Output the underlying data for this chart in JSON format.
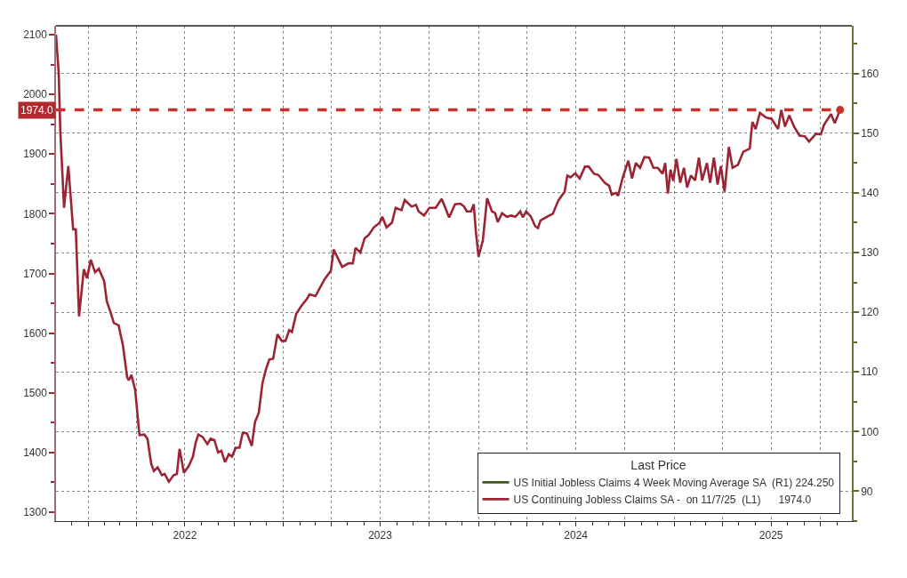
{
  "chart_data": {
    "type": "line",
    "legend_title": "Last Price",
    "xlim": [
      "2021-11-02",
      "2025-11-29"
    ],
    "xticks": [
      {
        "value": "2022-01-01",
        "label": null
      },
      {
        "value": "2022-04-01",
        "label": null
      },
      {
        "value": "2022-07-01",
        "label": "2022"
      },
      {
        "value": "2022-10-01",
        "label": null
      },
      {
        "value": "2023-01-01",
        "label": null
      },
      {
        "value": "2023-04-01",
        "label": null
      },
      {
        "value": "2023-07-01",
        "label": "2023"
      },
      {
        "value": "2023-10-01",
        "label": null
      },
      {
        "value": "2024-01-01",
        "label": null
      },
      {
        "value": "2024-04-01",
        "label": null
      },
      {
        "value": "2024-07-01",
        "label": "2024"
      },
      {
        "value": "2024-10-01",
        "label": null
      },
      {
        "value": "2025-01-01",
        "label": null
      },
      {
        "value": "2025-04-01",
        "label": null
      },
      {
        "value": "2025-07-01",
        "label": "2025"
      },
      {
        "value": "2025-10-01",
        "label": null
      }
    ],
    "ylim": [
      1285,
      2115
    ],
    "yticks": [
      1300,
      1400,
      1500,
      1600,
      1700,
      1800,
      1900,
      2000,
      2100
    ],
    "y2lim": [
      85,
      168
    ],
    "y2ticks": [
      90,
      100,
      110,
      120,
      130,
      140,
      150,
      160
    ],
    "grid": true,
    "legend": "bottom right",
    "marker": "none",
    "line_style": "solid",
    "ref_lines": [
      {
        "axis": "y",
        "value": 1974.0,
        "label": "1974.0",
        "color": "#c8322a",
        "line_style": "dashed"
      }
    ],
    "series": [
      {
        "name": "US Initial Jobless Claims 4 Week Moving Average SA  (R1) 224.250",
        "color": "#3b5a1c",
        "axis": "y2"
      },
      {
        "name": "US Continuing Jobless Claims SA -  on 11/7/25  (L1)      1974.0",
        "color": "#9b2535",
        "axis": "y",
        "x": [
          "2021-11-02",
          "2021-11-07",
          "2021-11-10",
          "2021-11-17",
          "2021-11-25",
          "2021-12-04",
          "2021-12-09",
          "2021-12-15",
          "2021-12-24",
          "2021-12-30",
          "2022-01-06",
          "2022-01-14",
          "2022-01-21",
          "2022-01-31",
          "2022-02-05",
          "2022-02-13",
          "2022-02-18",
          "2022-02-27",
          "2022-03-07",
          "2022-03-15",
          "2022-03-18",
          "2022-03-23",
          "2022-03-30",
          "2022-04-07",
          "2022-04-16",
          "2022-04-22",
          "2022-04-29",
          "2022-05-04",
          "2022-05-11",
          "2022-05-19",
          "2022-05-24",
          "2022-06-01",
          "2022-06-10",
          "2022-06-16",
          "2022-06-21",
          "2022-06-29",
          "2022-07-08",
          "2022-07-16",
          "2022-07-21",
          "2022-07-26",
          "2022-08-03",
          "2022-08-12",
          "2022-08-18",
          "2022-08-25",
          "2022-09-01",
          "2022-09-07",
          "2022-09-14",
          "2022-09-21",
          "2022-09-27",
          "2022-10-04",
          "2022-10-11",
          "2022-10-17",
          "2022-10-25",
          "2022-11-03",
          "2022-11-09",
          "2022-11-16",
          "2022-11-23",
          "2022-11-29",
          "2022-12-06",
          "2022-12-13",
          "2022-12-21",
          "2022-12-29",
          "2023-01-05",
          "2023-01-12",
          "2023-01-17",
          "2023-01-25",
          "2023-02-04",
          "2023-02-14",
          "2023-02-19",
          "2023-03-02",
          "2023-03-19",
          "2023-03-31",
          "2023-04-05",
          "2023-04-21",
          "2023-05-03",
          "2023-05-11",
          "2023-05-16",
          "2023-05-25",
          "2023-06-02",
          "2023-06-10",
          "2023-06-19",
          "2023-06-30",
          "2023-07-05",
          "2023-07-13",
          "2023-07-23",
          "2023-07-30",
          "2023-08-10",
          "2023-08-16",
          "2023-08-29",
          "2023-09-06",
          "2023-09-11",
          "2023-09-21",
          "2023-10-01",
          "2023-10-13",
          "2023-10-24",
          "2023-11-07",
          "2023-11-18",
          "2023-11-28",
          "2023-12-05",
          "2023-12-10",
          "2023-12-18",
          "2023-12-23",
          "2023-12-27",
          "2024-01-01",
          "2024-01-09",
          "2024-01-17",
          "2024-01-26",
          "2024-02-01",
          "2024-02-06",
          "2024-02-14",
          "2024-02-23",
          "2024-03-02",
          "2024-03-10",
          "2024-03-19",
          "2024-03-24",
          "2024-03-30",
          "2024-04-08",
          "2024-04-16",
          "2024-04-21",
          "2024-04-26",
          "2024-05-08",
          "2024-05-19",
          "2024-05-29",
          "2024-06-10",
          "2024-06-15",
          "2024-06-21",
          "2024-06-30",
          "2024-07-08",
          "2024-07-18",
          "2024-07-25",
          "2024-08-04",
          "2024-08-12",
          "2024-08-24",
          "2024-09-01",
          "2024-09-06",
          "2024-09-14",
          "2024-09-18",
          "2024-09-26",
          "2024-10-07",
          "2024-10-14",
          "2024-10-21",
          "2024-10-29",
          "2024-11-06",
          "2024-11-15",
          "2024-11-23",
          "2024-12-01",
          "2024-12-10",
          "2024-12-15",
          "2024-12-20",
          "2024-12-25",
          "2024-12-30",
          "2025-01-05",
          "2025-01-12",
          "2025-01-19",
          "2025-01-25",
          "2025-02-01",
          "2025-02-09",
          "2025-02-16",
          "2025-02-22",
          "2025-03-03",
          "2025-03-09",
          "2025-03-16",
          "2025-03-23",
          "2025-03-29",
          "2025-04-05",
          "2025-04-13",
          "2025-04-20",
          "2025-04-30",
          "2025-05-10",
          "2025-05-22",
          "2025-05-27",
          "2025-06-02",
          "2025-06-10",
          "2025-06-22",
          "2025-07-02",
          "2025-07-14",
          "2025-07-20",
          "2025-07-27",
          "2025-08-04",
          "2025-08-13",
          "2025-08-23",
          "2025-09-02",
          "2025-09-10",
          "2025-09-23",
          "2025-10-02",
          "2025-10-08",
          "2025-10-21",
          "2025-10-28",
          "2025-11-07"
        ],
        "values": [
          2100,
          2036,
          1939,
          1810,
          1880,
          1774,
          1774,
          1628,
          1707,
          1692,
          1723,
          1702,
          1708,
          1687,
          1653,
          1632,
          1617,
          1613,
          1580,
          1526,
          1521,
          1530,
          1505,
          1429,
          1430,
          1423,
          1381,
          1369,
          1375,
          1362,
          1364,
          1351,
          1362,
          1364,
          1406,
          1366,
          1377,
          1393,
          1416,
          1430,
          1426,
          1414,
          1423,
          1421,
          1400,
          1403,
          1384,
          1397,
          1393,
          1408,
          1408,
          1433,
          1432,
          1411,
          1451,
          1466,
          1516,
          1538,
          1556,
          1557,
          1598,
          1587,
          1587,
          1605,
          1602,
          1632,
          1646,
          1657,
          1665,
          1662,
          1690,
          1705,
          1740,
          1711,
          1717,
          1717,
          1743,
          1735,
          1759,
          1765,
          1777,
          1785,
          1795,
          1777,
          1785,
          1810,
          1806,
          1823,
          1812,
          1815,
          1804,
          1797,
          1810,
          1810,
          1825,
          1794,
          1816,
          1817,
          1812,
          1804,
          1804,
          1816,
          1770,
          1728,
          1755,
          1826,
          1804,
          1801,
          1786,
          1801,
          1795,
          1797,
          1795,
          1804,
          1794,
          1804,
          1795,
          1779,
          1776,
          1789,
          1795,
          1800,
          1822,
          1837,
          1864,
          1861,
          1868,
          1859,
          1879,
          1879,
          1867,
          1865,
          1852,
          1847,
          1832,
          1835,
          1830,
          1859,
          1889,
          1859,
          1885,
          1877,
          1895,
          1894,
          1877,
          1877,
          1867,
          1885,
          1834,
          1874,
          1855,
          1892,
          1852,
          1877,
          1844,
          1864,
          1856,
          1894,
          1856,
          1885,
          1852,
          1894,
          1849,
          1880,
          1837,
          1912,
          1877,
          1882,
          1904,
          1909,
          1954,
          1942,
          1969,
          1961,
          1959,
          1942,
          1974,
          1946,
          1965,
          1946,
          1931,
          1930,
          1921,
          1934,
          1933,
          1949,
          1967,
          1952,
          1974.0
        ]
      }
    ]
  }
}
